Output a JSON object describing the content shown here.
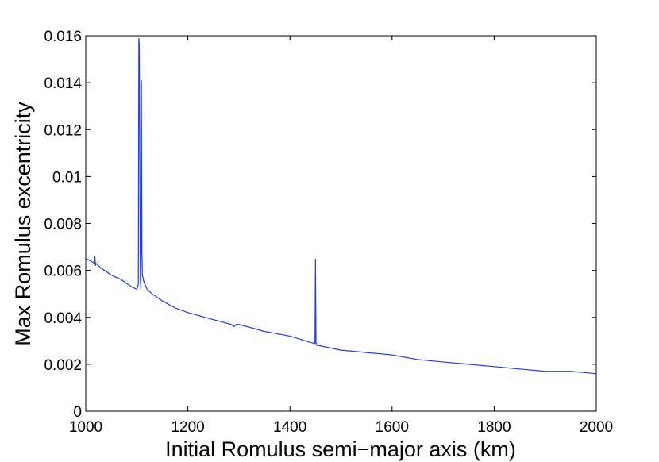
{
  "chart_data": {
    "type": "line",
    "xlabel": "Initial Romulus semi−major axis (km)",
    "ylabel": "Max Romulus excentricity",
    "x": [
      1000,
      1010,
      1017,
      1018,
      1019,
      1020,
      1030,
      1050,
      1070,
      1090,
      1100,
      1103,
      1104,
      1105,
      1106,
      1107,
      1108,
      1109,
      1110,
      1111,
      1114,
      1120,
      1130,
      1150,
      1175,
      1200,
      1250,
      1285,
      1290,
      1295,
      1300,
      1350,
      1400,
      1445,
      1449,
      1450,
      1451,
      1453,
      1456,
      1500,
      1550,
      1600,
      1650,
      1700,
      1750,
      1800,
      1850,
      1900,
      1950,
      2000
    ],
    "series": [
      {
        "color": "#1f3fe0",
        "values": [
          0.0065,
          0.0064,
          0.0063,
          0.0066,
          0.0062,
          0.0063,
          0.0061,
          0.0058,
          0.0056,
          0.0053,
          0.0052,
          0.0054,
          0.0159,
          0.0155,
          0.0105,
          0.0056,
          0.0052,
          0.0141,
          0.0068,
          0.0058,
          0.0055,
          0.0052,
          0.005,
          0.0047,
          0.0044,
          0.0042,
          0.0039,
          0.0037,
          0.0036,
          0.0037,
          0.0037,
          0.0034,
          0.0032,
          0.0029,
          0.0029,
          0.0065,
          0.0029,
          0.0028,
          0.0028,
          0.0026,
          0.0025,
          0.0024,
          0.0022,
          0.0021,
          0.002,
          0.0019,
          0.0018,
          0.0017,
          0.0017,
          0.0016
        ]
      }
    ],
    "xlim": [
      1000,
      2000
    ],
    "xticks": [
      1000,
      1200,
      1400,
      1600,
      1800,
      2000
    ],
    "ylim": [
      0,
      0.016
    ],
    "yticks": [
      0,
      0.002,
      0.004,
      0.006,
      0.008,
      0.01,
      0.012,
      0.014,
      0.016
    ],
    "grid": false
  }
}
